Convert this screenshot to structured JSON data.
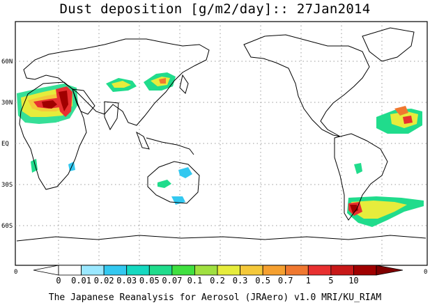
{
  "title": "Dust deposition [g/m2/day]:: 27Jan2014",
  "lat_labels": [
    "60N",
    "30N",
    "EQ",
    "30S",
    "60S"
  ],
  "axis_zero": "0",
  "colorbar": {
    "ticks": [
      "0",
      "0.01",
      "0.02",
      "0.03",
      "0.05",
      "0.07",
      "0.1",
      "0.2",
      "0.3",
      "0.5",
      "0.7",
      "1",
      "5",
      "10"
    ],
    "colors": [
      "#ffffff",
      "#9be8ff",
      "#33c8f0",
      "#15d9c0",
      "#20dc8c",
      "#40e040",
      "#a0e040",
      "#e6ec3c",
      "#f4c83a",
      "#f5a030",
      "#f07830",
      "#e83030",
      "#c81818",
      "#a00000"
    ],
    "low_arrow": "#ffffff",
    "high_arrow": "#800000"
  },
  "footer": "The Japanese Reanalysis for Aerosol (JRAero) v1.0 MRI/KU_RIAM"
}
